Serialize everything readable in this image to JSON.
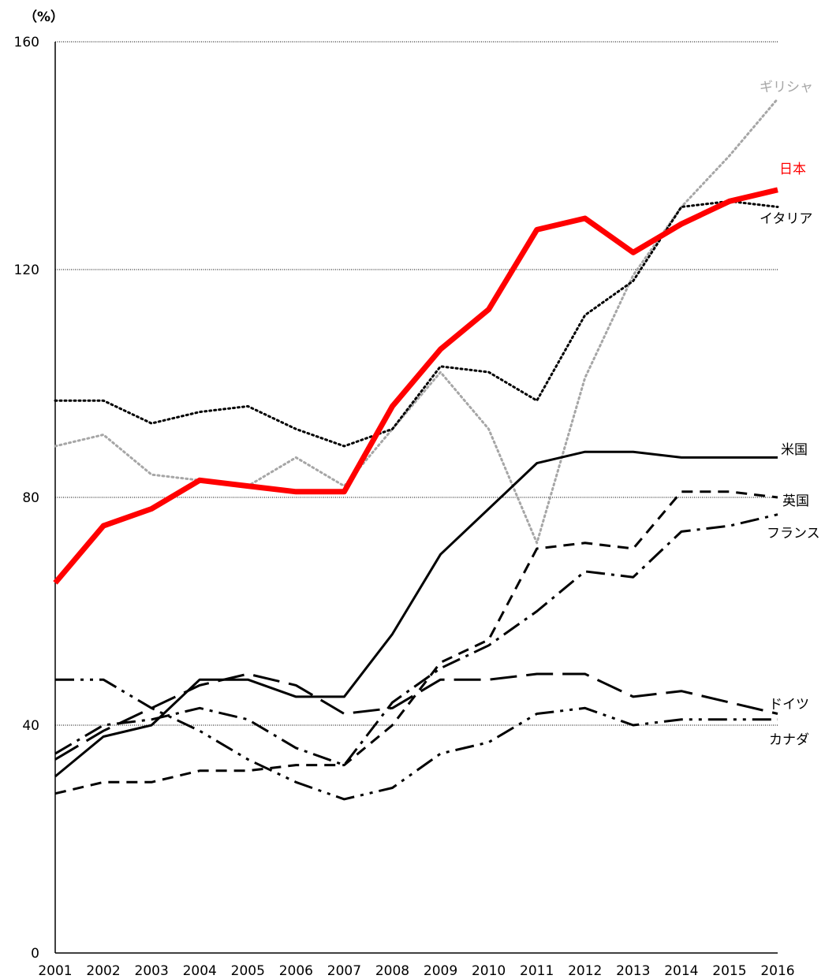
{
  "chart_data": {
    "type": "line",
    "title": "",
    "unit_label": "（%）",
    "xlabel": "",
    "ylabel": "",
    "ylim": [
      0,
      160
    ],
    "yticks": [
      0,
      40,
      80,
      120,
      160
    ],
    "grid": "horizontal-dotted",
    "legend": "inline-right",
    "x": [
      "2001",
      "2002",
      "2003",
      "2004",
      "2005",
      "2006",
      "2007",
      "2008",
      "2009",
      "2010",
      "2011",
      "2012",
      "2013",
      "2014",
      "2015",
      "2016"
    ],
    "series": [
      {
        "name": "ギリシャ",
        "color": "#a6a6a6",
        "style": "dotted",
        "width": 3,
        "values": [
          89,
          91,
          84,
          83,
          82,
          87,
          82,
          92,
          102,
          92,
          72,
          101,
          119,
          131,
          140,
          150
        ]
      },
      {
        "name": "イタリア",
        "color": "#000000",
        "style": "dotted",
        "width": 3,
        "values": [
          97,
          97,
          93,
          95,
          96,
          92,
          89,
          92,
          103,
          102,
          97,
          112,
          118,
          131,
          132,
          131
        ]
      },
      {
        "name": "米国",
        "color": "#000000",
        "style": "solid",
        "width": 3,
        "values": [
          31,
          38,
          40,
          48,
          48,
          45,
          45,
          56,
          70,
          78,
          86,
          88,
          88,
          87,
          87,
          87
        ]
      },
      {
        "name": "英国",
        "color": "#000000",
        "style": "dash",
        "width": 3,
        "values": [
          28,
          30,
          30,
          32,
          32,
          33,
          33,
          40,
          51,
          55,
          71,
          72,
          71,
          81,
          81,
          80
        ]
      },
      {
        "name": "フランス",
        "color": "#000000",
        "style": "dashdot",
        "width": 3,
        "values": [
          35,
          40,
          41,
          43,
          41,
          36,
          33,
          44,
          50,
          54,
          60,
          67,
          66,
          74,
          75,
          77
        ]
      },
      {
        "name": "ドイツ",
        "color": "#000000",
        "style": "longdash",
        "width": 3,
        "values": [
          34,
          39,
          43,
          47,
          49,
          47,
          42,
          43,
          48,
          48,
          49,
          49,
          45,
          46,
          44,
          42
        ]
      },
      {
        "name": "カナダ",
        "color": "#000000",
        "style": "dashdotdot",
        "width": 3,
        "values": [
          48,
          48,
          43,
          39,
          34,
          30,
          27,
          29,
          35,
          37,
          42,
          43,
          40,
          41,
          41,
          41
        ]
      },
      {
        "name": "日本",
        "color": "#ff0000",
        "style": "solid",
        "width": 7,
        "values": [
          65,
          75,
          78,
          83,
          82,
          81,
          81,
          96,
          106,
          113,
          127,
          129,
          123,
          128,
          132,
          134
        ]
      }
    ]
  }
}
